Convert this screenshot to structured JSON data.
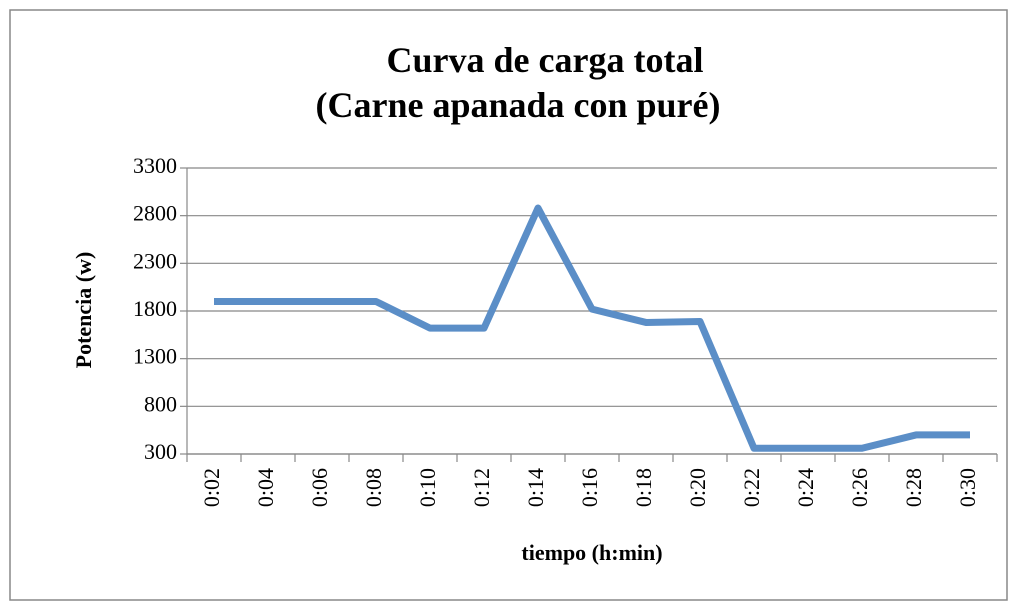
{
  "chart_data": {
    "type": "line",
    "title": "Curva de carga total",
    "subtitle": "(Carne apanada con puré)",
    "x_label": "tiempo (h:min)",
    "y_label": "Potencia (w)",
    "categories": [
      "0:02",
      "0:04",
      "0:06",
      "0:08",
      "0:10",
      "0:12",
      "0:14",
      "0:16",
      "0:18",
      "0:20",
      "0:22",
      "0:24",
      "0:26",
      "0:28",
      "0:30"
    ],
    "series": [
      {
        "name": "Potencia",
        "color": "#5b8ec7",
        "values": [
          1900,
          1900,
          1900,
          1900,
          1620,
          1620,
          2880,
          1820,
          1680,
          1690,
          360,
          360,
          360,
          500,
          500
        ]
      }
    ],
    "ylim": [
      300,
      3300
    ],
    "yticks": [
      300,
      800,
      1300,
      1800,
      2300,
      2800,
      3300
    ],
    "grid": true,
    "legend": false
  }
}
